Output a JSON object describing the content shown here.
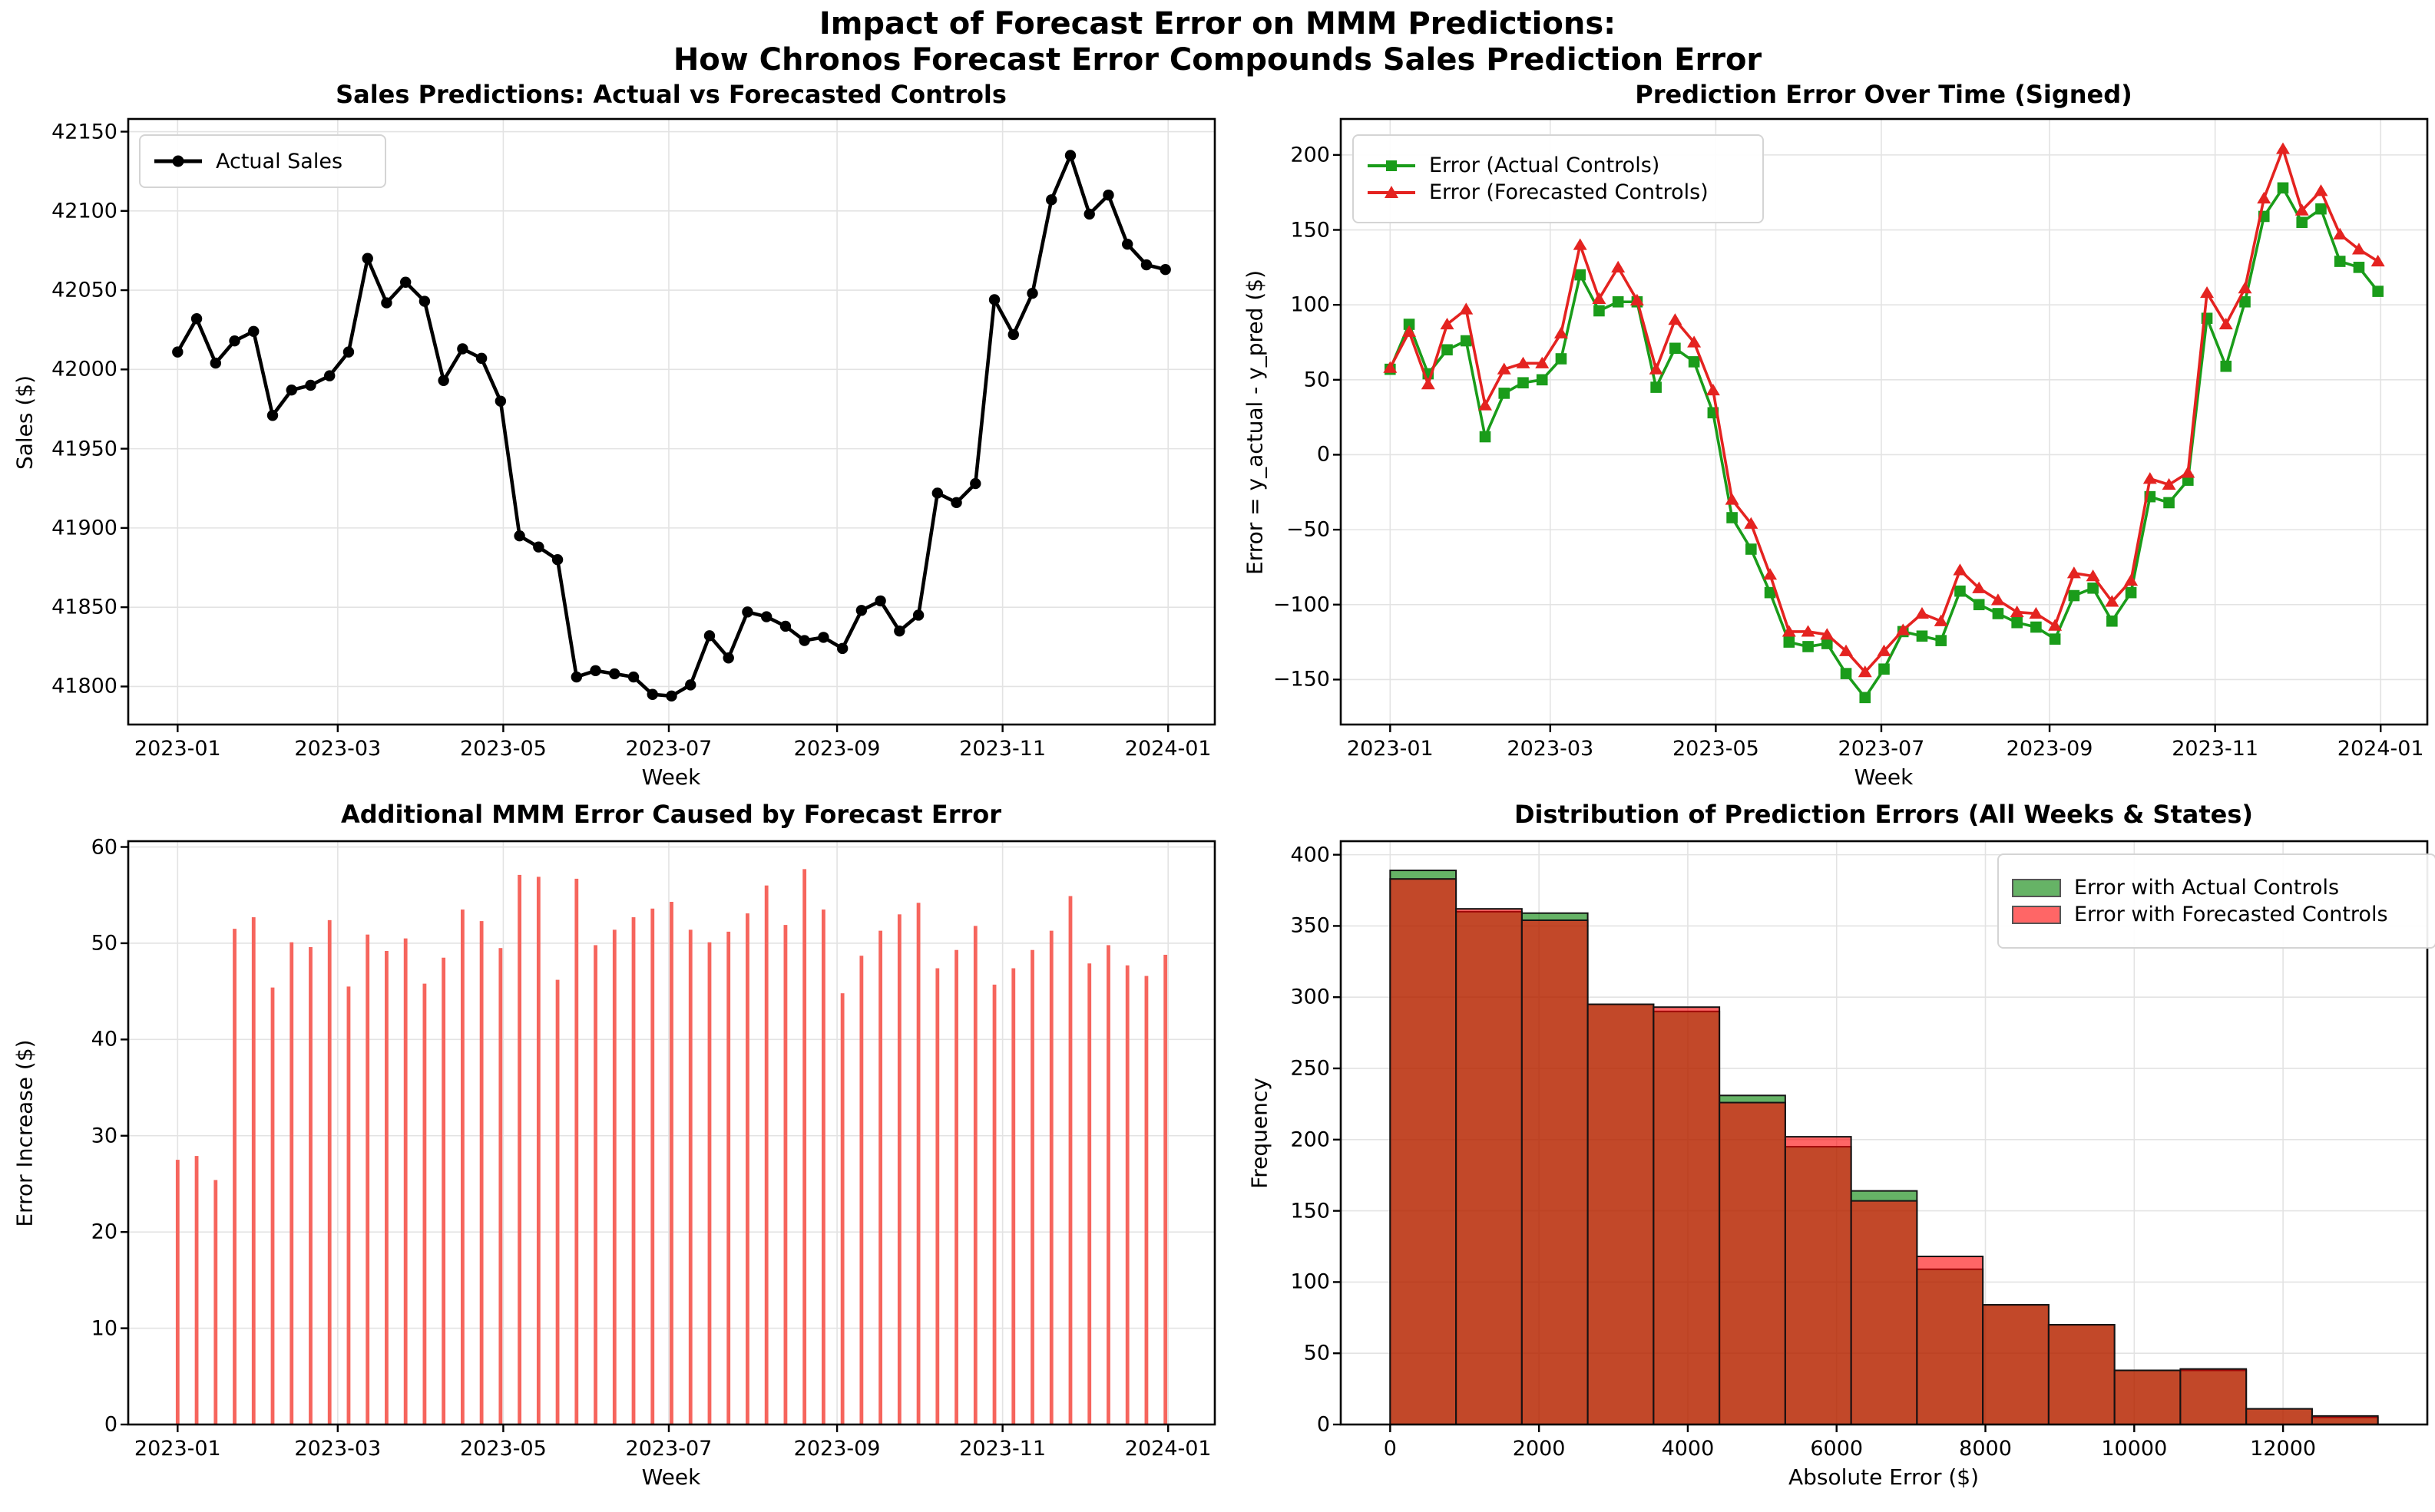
{
  "suptitle": {
    "line1": "Impact of Forecast Error on MMM Predictions:",
    "line2": "How Chronos Forecast Error Compounds Sales Prediction Error"
  },
  "time_axis": {
    "xtick_labels": [
      "2023-01",
      "2023-03",
      "2023-05",
      "2023-07",
      "2023-09",
      "2023-11",
      "2024-01"
    ],
    "xtick_day_offsets": [
      0,
      59,
      120,
      181,
      243,
      304,
      365
    ],
    "n_weeks": 53,
    "week_step_days": 7
  },
  "chart_data": [
    {
      "id": "sales",
      "type": "line",
      "title": "Sales Predictions: Actual vs Forecasted Controls",
      "xlabel": "Week",
      "ylabel": "Sales ($)",
      "legend_pos": "upper left",
      "grid": true,
      "ylim": [
        41776,
        42158
      ],
      "yticks": [
        41800,
        41850,
        41900,
        41950,
        42000,
        42050,
        42100,
        42150
      ],
      "series": [
        {
          "name": "Actual Sales",
          "color": "#000000",
          "marker": "circle",
          "values": [
            42011,
            42032,
            42004,
            42018,
            42024,
            41971,
            41987,
            41990,
            41996,
            42011,
            42070,
            42042,
            42055,
            42043,
            41993,
            42013,
            42007,
            41980,
            41895,
            41888,
            41880,
            41806,
            41810,
            41808,
            41806,
            41795,
            41794,
            41801,
            41832,
            41818,
            41847,
            41844,
            41838,
            41829,
            41831,
            41824,
            41848,
            41854,
            41835,
            41845,
            41922,
            41916,
            41928,
            42044,
            42022,
            42048,
            42107,
            42135,
            42098,
            42110,
            42079,
            42066,
            42063
          ]
        }
      ]
    },
    {
      "id": "error",
      "type": "line",
      "title": "Prediction Error Over Time (Signed)",
      "xlabel": "Week",
      "ylabel": "Error = y_actual - y_pred ($)",
      "legend_pos": "upper left",
      "grid": true,
      "ylim": [
        -180,
        224
      ],
      "yticks": [
        -150,
        -100,
        -50,
        0,
        50,
        100,
        150,
        200
      ],
      "series": [
        {
          "name": "Error (Actual Controls)",
          "color": "#1a9c1a",
          "marker": "square",
          "values": [
            57,
            87,
            54,
            70,
            76,
            12,
            41,
            48,
            50,
            64,
            120,
            96,
            102,
            102,
            45,
            71,
            62,
            28,
            -42,
            -63,
            -92,
            -125,
            -128,
            -126,
            -146,
            -162,
            -143,
            -118,
            -121,
            -124,
            -91,
            -100,
            -106,
            -112,
            -115,
            -123,
            -94,
            -89,
            -111,
            -92,
            -28,
            -32,
            -17,
            91,
            59,
            102,
            159,
            178,
            155,
            164,
            129,
            125,
            109
          ]
        },
        {
          "name": "Error (Forecasted Controls)",
          "color": "#e42320",
          "marker": "triangle",
          "values": [
            58,
            82,
            47,
            87,
            97,
            33,
            57,
            61,
            61,
            81,
            140,
            104,
            125,
            103,
            57,
            90,
            75,
            43,
            -30,
            -46,
            -80,
            -118,
            -118,
            -120,
            -131,
            -145,
            -131,
            -117,
            -106,
            -111,
            -77,
            -89,
            -97,
            -105,
            -106,
            -114,
            -79,
            -81,
            -98,
            -84,
            -16,
            -20,
            -12,
            108,
            87,
            111,
            171,
            204,
            163,
            176,
            147,
            137,
            129
          ]
        }
      ]
    },
    {
      "id": "increase",
      "type": "bar",
      "title": "Additional MMM Error Caused by Forecast Error",
      "xlabel": "Week",
      "ylabel": "Error Increase ($)",
      "grid": true,
      "ylim": [
        0,
        60.6
      ],
      "yticks": [
        0,
        10,
        20,
        30,
        40,
        50,
        60
      ],
      "bar_color": "#f6655d",
      "values": [
        27.5,
        27.9,
        25.4,
        51.5,
        52.7,
        45.4,
        50.1,
        49.6,
        52.4,
        45.5,
        50.9,
        49.2,
        50.5,
        45.8,
        48.5,
        53.5,
        52.3,
        49.5,
        57.1,
        56.9,
        46.2,
        56.7,
        49.8,
        51.4,
        52.7,
        53.6,
        54.3,
        51.4,
        50.1,
        51.2,
        53.1,
        56.0,
        51.9,
        57.7,
        53.5,
        44.8,
        48.7,
        51.3,
        53.0,
        54.2,
        47.4,
        49.3,
        51.8,
        45.7,
        47.4,
        49.3,
        51.3,
        54.9,
        47.9,
        49.8,
        47.7,
        46.6,
        48.8
      ]
    },
    {
      "id": "hist",
      "type": "histogram",
      "title": "Distribution of Prediction Errors (All Weeks & States)",
      "xlabel": "Absolute Error ($)",
      "ylabel": "Frequency",
      "legend_pos": "upper right",
      "grid": true,
      "bin_start": 0,
      "bin_width": 885,
      "xlim": [
        -664,
        13939
      ],
      "xticks": [
        0,
        2000,
        4000,
        6000,
        8000,
        10000,
        12000
      ],
      "ylim": [
        0,
        409.5
      ],
      "yticks": [
        0,
        50,
        100,
        150,
        200,
        250,
        300,
        350,
        400
      ],
      "alpha": 0.6,
      "edge_color": "#141414",
      "series": [
        {
          "name": "Error with Actual Controls",
          "color": "#008000",
          "counts": [
            389,
            360,
            359,
            295,
            290,
            231,
            195,
            164,
            109,
            84,
            70,
            38,
            38,
            11,
            5
          ]
        },
        {
          "name": "Error with Forecasted Controls",
          "color": "#ff0000",
          "counts": [
            383,
            362,
            354,
            295,
            293,
            226,
            202,
            157,
            118,
            84,
            70,
            38,
            39,
            11,
            6
          ]
        }
      ]
    }
  ],
  "style": {
    "grid_color": "#e3e3e3",
    "spine_color": "#000000",
    "background": "#ffffff"
  }
}
